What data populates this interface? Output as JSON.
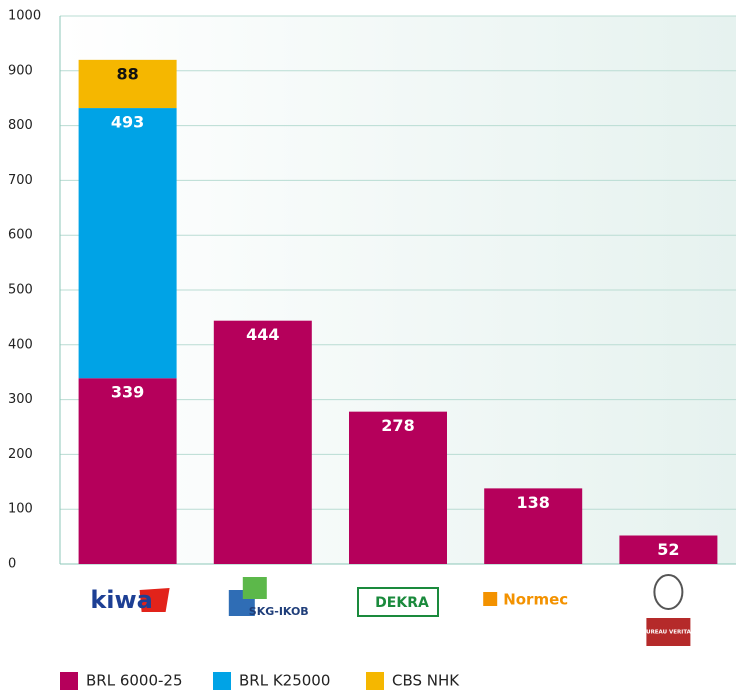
{
  "chart_data": {
    "type": "stacked_bar",
    "categories": [
      "kiwa",
      "SKG-IKOB",
      "DEKRA",
      "Normec",
      "BUREAU VERITAS"
    ],
    "series": [
      {
        "name": "BRL 6000-25",
        "color": "#b5005b",
        "values": [
          339,
          444,
          278,
          138,
          52
        ]
      },
      {
        "name": "BRL K25000",
        "color": "#00a3e6",
        "values": [
          493,
          null,
          null,
          null,
          null
        ]
      },
      {
        "name": "CBS NHK",
        "color": "#f5b700",
        "values": [
          88,
          null,
          null,
          null,
          null
        ]
      }
    ],
    "ylim": [
      0,
      1000
    ],
    "yticks": [
      0,
      100,
      200,
      300,
      400,
      500,
      600,
      700,
      800,
      900,
      1000
    ],
    "grid": true,
    "legend": "bottom"
  }
}
